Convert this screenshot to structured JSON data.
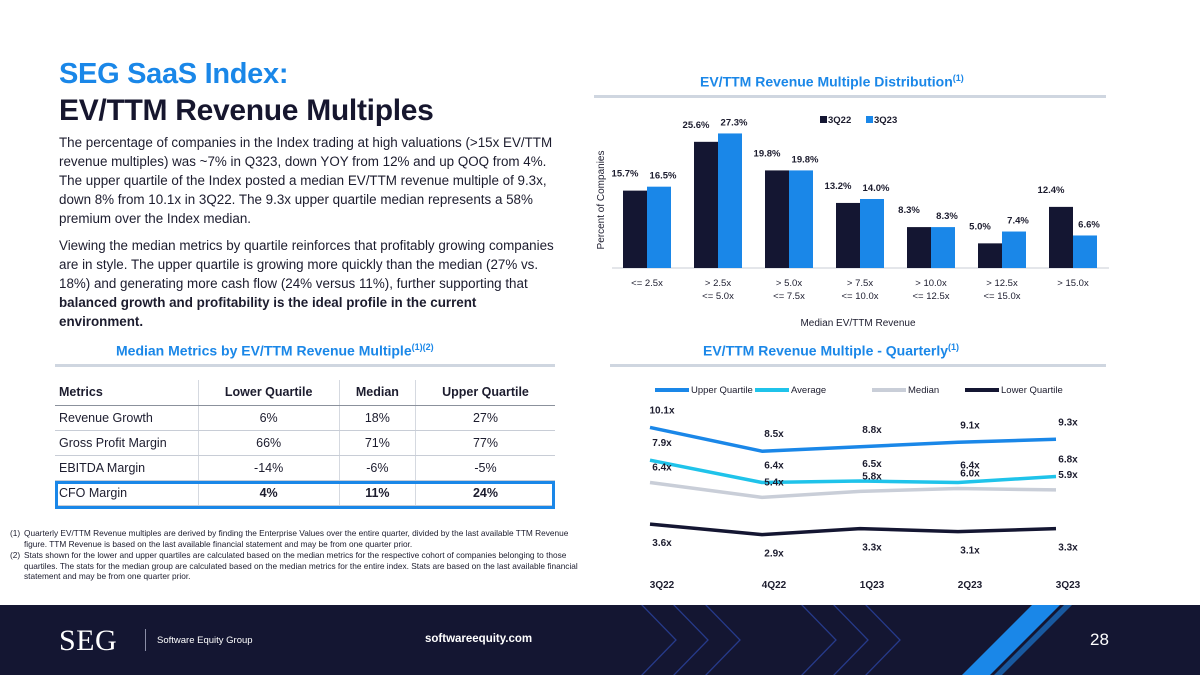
{
  "header": {
    "title_line1": "SEG SaaS Index:",
    "title_line2": "EV/TTM Revenue Multiples"
  },
  "body": {
    "paragraph1": "The percentage of companies in the Index trading at high valuations (>15x EV/TTM revenue multiples) was ~7% in Q323, down YOY from 12% and up QOQ from 4%. The upper quartile of the Index posted a median EV/TTM revenue multiple of 9.3x, down 8% from 10.1x in 3Q22. The 9.3x upper quartile median represents a 58% premium over the Index median.",
    "paragraph2_plain": "Viewing the median metrics by quartile reinforces that profitably growing companies are in style. The upper quartile is growing more quickly than the median (27% vs. 18%) and generating more cash flow (24% versus 11%), further supporting that ",
    "paragraph2_bold": "balanced growth and profitability is the ideal profile in the current environment."
  },
  "table_section": {
    "title": "Median Metrics by EV/TTM Revenue Multiple",
    "title_sup": "(1)(2)",
    "headers": [
      "Metrics",
      "Lower Quartile",
      "Median",
      "Upper Quartile"
    ],
    "rows": [
      [
        "Revenue Growth",
        "6%",
        "18%",
        "27%"
      ],
      [
        "Gross Profit Margin",
        "66%",
        "71%",
        "77%"
      ],
      [
        "EBITDA Margin",
        "-14%",
        "-6%",
        "-5%"
      ],
      [
        "CFO Margin",
        "4%",
        "11%",
        "24%"
      ]
    ]
  },
  "footnotes": [
    {
      "num": "(1)",
      "text": "Quarterly EV/TTM Revenue multiples are derived by finding the Enterprise Values over the entire quarter, divided by the last available TTM Revenue figure. TTM Revenue is based on the last available financial statement and may be from one quarter prior."
    },
    {
      "num": "(2)",
      "text": "Stats shown for the lower and upper quartiles are calculated based on the median metrics for the respective cohort of companies belonging to those quartiles. The stats for the median group are calculated based on the median metrics for the entire index. Stats are based on the last available financial statement and may be from one quarter prior."
    }
  ],
  "chart_data": [
    {
      "type": "bar",
      "title": "EV/TTM Revenue Multiple Distribution",
      "title_sup": "(1)",
      "xlabel": "Median EV/TTM Revenue",
      "ylabel": "Percent of Companies",
      "categories": [
        [
          "<= 2.5x"
        ],
        [
          "> 2.5x",
          "<= 5.0x"
        ],
        [
          "> 5.0x",
          "<= 7.5x"
        ],
        [
          "> 7.5x",
          "<= 10.0x"
        ],
        [
          "> 10.0x",
          "<= 12.5x"
        ],
        [
          "> 12.5x",
          "<= 15.0x"
        ],
        [
          "> 15.0x"
        ]
      ],
      "series": [
        {
          "name": "3Q22",
          "color": "#141632",
          "values": [
            15.7,
            25.6,
            19.8,
            13.2,
            8.3,
            5.0,
            12.4
          ],
          "labels": [
            "15.7%",
            "25.6%",
            "19.8%",
            "13.2%",
            "8.3%",
            "5.0%",
            "12.4%"
          ]
        },
        {
          "name": "3Q23",
          "color": "#1a87e8",
          "values": [
            16.5,
            27.3,
            19.8,
            14.0,
            8.3,
            7.4,
            6.6
          ],
          "labels": [
            "16.5%",
            "27.3%",
            "19.8%",
            "14.0%",
            "8.3%",
            "7.4%",
            "6.6%"
          ]
        }
      ],
      "ylim": [
        0,
        28
      ],
      "legend": "top-center"
    },
    {
      "type": "line",
      "title": "EV/TTM Revenue Multiple - Quarterly",
      "title_sup": "(1)",
      "categories": [
        "3Q22",
        "4Q22",
        "1Q23",
        "2Q23",
        "3Q23"
      ],
      "series": [
        {
          "name": "Upper Quartile",
          "color": "#1a87e8",
          "values": [
            10.1,
            8.5,
            8.8,
            9.1,
            9.3
          ],
          "labels": [
            "10.1x",
            "8.5x",
            "8.8x",
            "9.1x",
            "9.3x"
          ]
        },
        {
          "name": "Average",
          "color": "#1fc3ea",
          "values": [
            7.9,
            6.4,
            6.5,
            6.4,
            6.8
          ],
          "labels": [
            "7.9x",
            "6.4x",
            "6.5x",
            "6.4x",
            "6.8x"
          ]
        },
        {
          "name": "Median",
          "color": "#c9ced8",
          "values": [
            6.4,
            5.4,
            5.8,
            6.0,
            5.9
          ],
          "labels": [
            "6.4x",
            "5.4x",
            "5.8x",
            "6.0x",
            "5.9x"
          ]
        },
        {
          "name": "Lower Quartile",
          "color": "#141632",
          "values": [
            3.6,
            2.9,
            3.3,
            3.1,
            3.3
          ],
          "labels": [
            "3.6x",
            "2.9x",
            "3.3x",
            "3.1x",
            "3.3x"
          ]
        }
      ],
      "ylim": [
        2,
        11
      ],
      "legend": "top"
    }
  ],
  "footer": {
    "logo": "SEG",
    "company": "Software Equity Group",
    "website": "softwareequity.com",
    "page_number": "28"
  }
}
